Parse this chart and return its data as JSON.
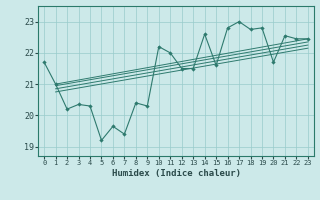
{
  "title": "",
  "xlabel": "Humidex (Indice chaleur)",
  "ylabel": "",
  "bg_color": "#cce9e9",
  "grid_color": "#99cccc",
  "line_color": "#2e7a6e",
  "xlim": [
    -0.5,
    23.5
  ],
  "ylim": [
    18.7,
    23.5
  ],
  "yticks": [
    19,
    20,
    21,
    22,
    23
  ],
  "xticks": [
    0,
    1,
    2,
    3,
    4,
    5,
    6,
    7,
    8,
    9,
    10,
    11,
    12,
    13,
    14,
    15,
    16,
    17,
    18,
    19,
    20,
    21,
    22,
    23
  ],
  "series_zigzag_x": [
    0,
    1,
    2,
    3,
    4,
    5,
    6,
    7,
    8,
    9,
    10,
    11,
    12,
    13,
    14,
    15,
    16,
    17,
    18,
    19,
    20,
    21,
    22,
    23
  ],
  "series_zigzag_y": [
    21.7,
    21.0,
    20.2,
    20.35,
    20.3,
    19.2,
    19.65,
    19.4,
    20.4,
    20.3,
    22.2,
    22.0,
    21.5,
    21.5,
    22.6,
    21.6,
    22.8,
    23.0,
    22.75,
    22.8,
    21.7,
    22.55,
    22.45,
    22.45
  ],
  "trend_lines": [
    {
      "x": [
        1,
        23
      ],
      "y": [
        21.0,
        22.45
      ]
    },
    {
      "x": [
        1,
        23
      ],
      "y": [
        20.95,
        22.35
      ]
    },
    {
      "x": [
        1,
        23
      ],
      "y": [
        20.85,
        22.25
      ]
    },
    {
      "x": [
        1,
        23
      ],
      "y": [
        20.75,
        22.15
      ]
    }
  ]
}
